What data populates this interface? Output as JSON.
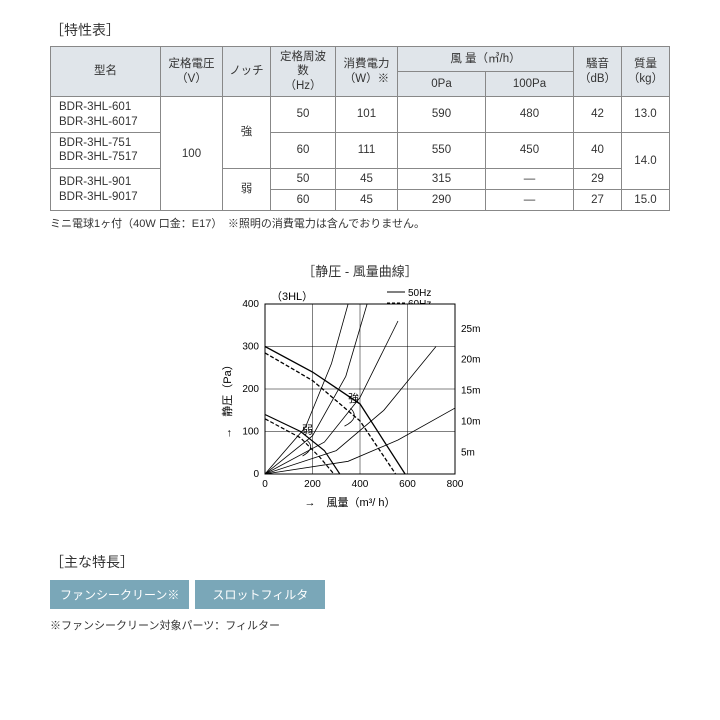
{
  "specTable": {
    "title": "［特性表］",
    "headers": {
      "model": "型名",
      "voltage": "定格電圧\n（V）",
      "notch": "ノッチ",
      "freq": "定格周波数\n（Hz）",
      "power": "消費電力\n（W）※",
      "airflow": "風  量（㎥/h）",
      "airflow_0": "0Pa",
      "airflow_100": "100Pa",
      "noise": "騒音\n（dB）",
      "mass": "質量\n（kg）"
    },
    "voltage_value": "100",
    "notch_strong": "強",
    "notch_weak": "弱",
    "rows": [
      {
        "models": [
          "BDR-3HL-601",
          "BDR-3HL-6017"
        ],
        "freq": "50",
        "power": "101",
        "af0": "590",
        "af100": "480",
        "noise": "42",
        "mass": "13.0"
      },
      {
        "models": [
          "BDR-3HL-751",
          "BDR-3HL-7517"
        ],
        "freq": "60",
        "power": "111",
        "af0": "550",
        "af100": "450",
        "noise": "40",
        "mass": "14.0"
      },
      {
        "models": [
          "BDR-3HL-901",
          "BDR-3HL-9017"
        ],
        "freq": "50",
        "power": "45",
        "af0": "315",
        "af100": "—",
        "noise": "29",
        "mass": null
      },
      {
        "models": [],
        "freq": "60",
        "power": "45",
        "af0": "290",
        "af100": "—",
        "noise": "27",
        "mass": "15.0"
      }
    ],
    "footnote": "ミニ電球1ヶ付（40W 口金：E17）　※照明の消費電力は含んでおりません。"
  },
  "chart": {
    "title": "［静圧 - 風量曲線］",
    "subtitle": "（3HL）",
    "legend_a": "50Hz",
    "legend_b": "60Hz",
    "x_label": "風量（m³/ h）",
    "y_label": "静圧（Pa）",
    "x_arrow": "→",
    "y_arrow": "→",
    "x_ticks": [
      "0",
      "200",
      "400",
      "600",
      "800"
    ],
    "y_ticks": [
      "0",
      "100",
      "200",
      "300",
      "400"
    ],
    "duct_labels": [
      "5m",
      "10m",
      "15m",
      "20m",
      "25m"
    ],
    "label_strong": "強",
    "label_weak": "弱",
    "xlim": [
      0,
      800
    ],
    "ylim": [
      0,
      400
    ],
    "plot": {
      "w": 190,
      "h": 170,
      "ox": 60,
      "oy": 20
    },
    "series": {
      "strong_solid": [
        [
          0,
          300
        ],
        [
          200,
          240
        ],
        [
          400,
          165
        ],
        [
          590,
          0
        ]
      ],
      "strong_dashed": [
        [
          0,
          285
        ],
        [
          200,
          220
        ],
        [
          400,
          125
        ],
        [
          550,
          0
        ]
      ],
      "weak_solid": [
        [
          0,
          140
        ],
        [
          150,
          100
        ],
        [
          250,
          55
        ],
        [
          315,
          0
        ]
      ],
      "weak_dashed": [
        [
          0,
          130
        ],
        [
          150,
          85
        ],
        [
          230,
          40
        ],
        [
          290,
          0
        ]
      ]
    },
    "duct_curves": [
      [
        [
          0,
          0
        ],
        [
          350,
          30
        ],
        [
          560,
          80
        ],
        [
          800,
          155
        ]
      ],
      [
        [
          0,
          0
        ],
        [
          300,
          55
        ],
        [
          500,
          150
        ],
        [
          720,
          300
        ]
      ],
      [
        [
          0,
          0
        ],
        [
          250,
          75
        ],
        [
          400,
          180
        ],
        [
          560,
          360
        ]
      ],
      [
        [
          0,
          0
        ],
        [
          200,
          90
        ],
        [
          340,
          230
        ],
        [
          430,
          400
        ]
      ],
      [
        [
          0,
          0
        ],
        [
          170,
          110
        ],
        [
          280,
          260
        ],
        [
          350,
          400
        ]
      ]
    ],
    "colors": {
      "axis": "#000000",
      "grid": "#000000",
      "dash": "#000000",
      "bg": "#ffffff"
    }
  },
  "features": {
    "title": "［主な特長］",
    "badges": [
      {
        "text": "ファンシークリーン※",
        "bg": "#7aa7b8"
      },
      {
        "text": "スロットフィルタ",
        "bg": "#7aa7b8"
      }
    ],
    "note": "※ファンシークリーン対象パーツ：フィルター"
  }
}
